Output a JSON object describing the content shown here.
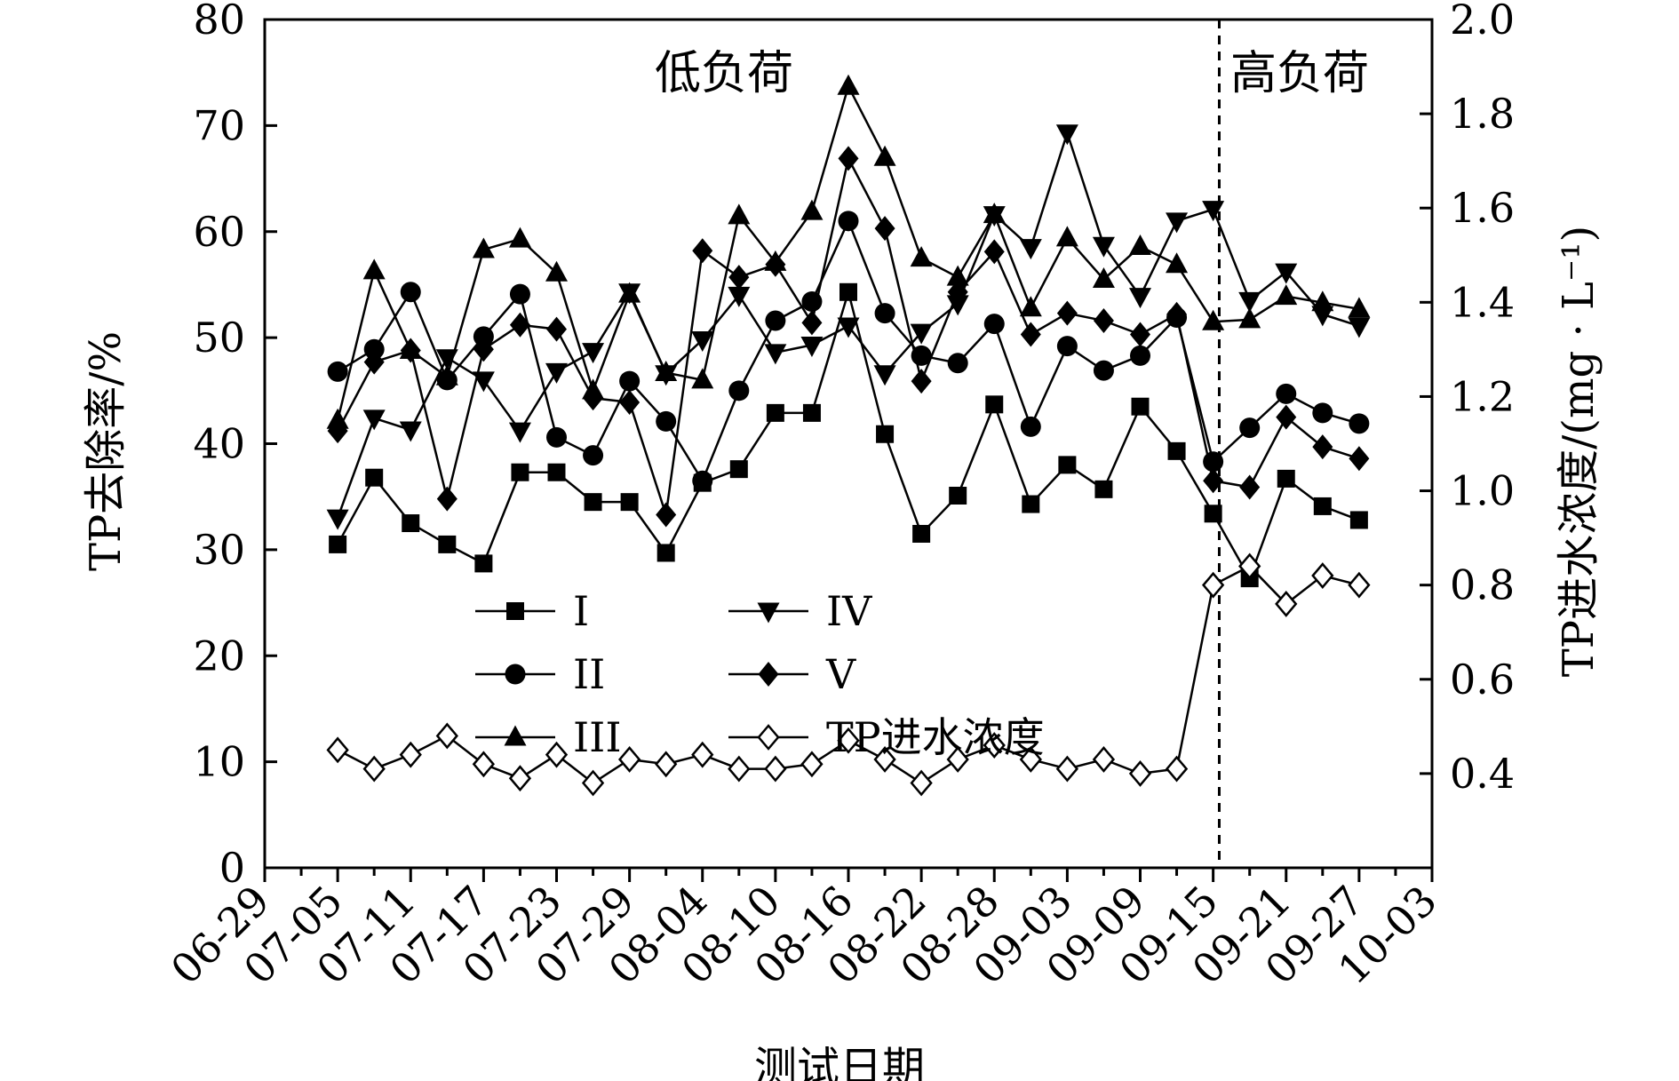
{
  "chart_data": {
    "type": "line",
    "xlabel": "测试日期",
    "ylabel_left": "TP去除率/%",
    "ylabel_right": "TP进水浓度/(mg · L⁻¹)",
    "x_tick_labels": [
      "06-29",
      "07-05",
      "07-11",
      "07-17",
      "07-23",
      "07-29",
      "08-04",
      "08-10",
      "08-16",
      "08-22",
      "08-28",
      "09-03",
      "09-09",
      "09-15",
      "09-21",
      "09-27",
      "10-03"
    ],
    "x_tick_values": [
      0,
      6,
      12,
      18,
      24,
      30,
      36,
      42,
      48,
      54,
      60,
      66,
      72,
      78,
      84,
      90,
      96
    ],
    "xlim": [
      0,
      96
    ],
    "ylim_left": [
      0,
      80
    ],
    "yticks_left": [
      "0",
      "10",
      "20",
      "30",
      "40",
      "50",
      "60",
      "70",
      "80"
    ],
    "ylim_right": [
      0.2,
      2.0
    ],
    "yticks_right": [
      "0.4",
      "0.6",
      "0.8",
      "1.0",
      "1.2",
      "1.4",
      "1.6",
      "1.8",
      "2.0"
    ],
    "x": [
      6,
      9,
      12,
      15,
      18,
      21,
      24,
      27,
      30,
      33,
      36,
      39,
      42,
      45,
      48,
      51,
      54,
      57,
      60,
      63,
      66,
      69,
      72,
      75,
      78,
      81,
      84,
      87,
      90
    ],
    "series": [
      {
        "name": "I",
        "axis": "left",
        "marker": "square",
        "values": [
          30.5,
          36.8,
          32.5,
          30.5,
          28.7,
          37.3,
          37.3,
          34.5,
          34.5,
          29.7,
          36.3,
          37.6,
          42.9,
          42.9,
          54.3,
          40.9,
          31.5,
          35.1,
          43.7,
          34.3,
          38.0,
          35.7,
          43.5,
          39.3,
          33.4,
          27.3,
          36.7,
          34.1,
          32.8
        ]
      },
      {
        "name": "II",
        "axis": "left",
        "marker": "circle",
        "values": [
          46.8,
          48.9,
          54.3,
          46.0,
          50.1,
          54.1,
          40.6,
          38.9,
          45.9,
          42.1,
          36.5,
          45.0,
          51.6,
          53.4,
          61.0,
          52.3,
          48.3,
          47.6,
          51.3,
          41.6,
          49.2,
          46.9,
          48.3,
          51.9,
          38.3,
          41.5,
          44.7,
          42.9,
          41.9
        ]
      },
      {
        "name": "III",
        "axis": "left",
        "marker": "triangle-up",
        "values": [
          42.2,
          56.3,
          48.8,
          46.3,
          58.3,
          59.3,
          56.1,
          45.0,
          54.1,
          46.7,
          46.0,
          61.5,
          57.1,
          61.9,
          73.7,
          67.0,
          57.5,
          55.7,
          61.6,
          52.8,
          59.4,
          55.5,
          58.6,
          56.9,
          51.5,
          51.7,
          53.9,
          53.3,
          52.7
        ]
      },
      {
        "name": "IV",
        "axis": "left",
        "marker": "triangle-down",
        "values": [
          33.0,
          42.4,
          41.3,
          48.1,
          46.0,
          41.2,
          46.8,
          48.7,
          54.3,
          46.6,
          49.8,
          54.0,
          48.6,
          49.3,
          51.1,
          46.6,
          50.5,
          53.2,
          61.6,
          58.5,
          69.3,
          58.7,
          53.9,
          61.0,
          62.1,
          53.5,
          56.2,
          52.2,
          51.1
        ]
      },
      {
        "name": "V",
        "axis": "left",
        "marker": "diamond",
        "values": [
          41.2,
          47.7,
          48.8,
          34.8,
          48.9,
          51.2,
          50.8,
          44.3,
          43.9,
          33.3,
          58.2,
          55.7,
          56.9,
          51.4,
          66.9,
          60.3,
          45.9,
          54.3,
          58.1,
          50.3,
          52.3,
          51.6,
          50.3,
          52.2,
          36.5,
          35.9,
          42.5,
          39.7,
          38.6
        ]
      },
      {
        "name": "TP进水浓度",
        "axis": "right",
        "marker": "open-diamond",
        "values": [
          0.45,
          0.41,
          0.44,
          0.48,
          0.42,
          0.39,
          0.44,
          0.38,
          0.43,
          0.42,
          0.44,
          0.41,
          0.41,
          0.42,
          0.47,
          0.43,
          0.38,
          0.43,
          0.46,
          0.43,
          0.41,
          0.43,
          0.4,
          0.41,
          0.8,
          0.84,
          0.76,
          0.82,
          0.8
        ]
      }
    ],
    "divider_x": 78.5,
    "regions": [
      {
        "label": "低负荷"
      },
      {
        "label": "高负荷"
      }
    ],
    "legend": {
      "placement": "lower-left",
      "columns": 2
    },
    "grid": false,
    "colors": {
      "line": "#000000",
      "open_marker_fill": "#ffffff"
    }
  }
}
